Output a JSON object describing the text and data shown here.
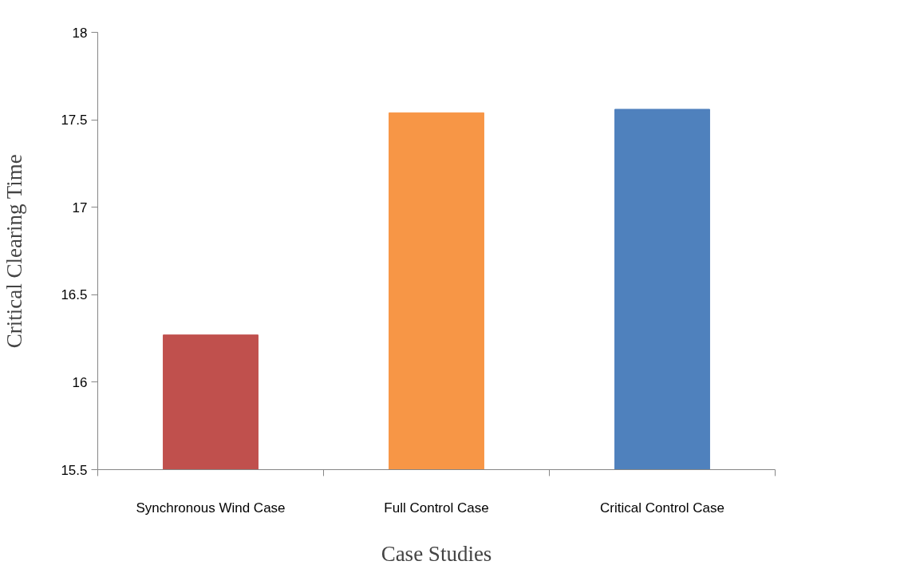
{
  "chart_data": {
    "type": "bar",
    "xlabel": "Case Studies",
    "ylabel": "Critical Clearing Time",
    "categories": [
      "Synchronous Wind Case",
      "Full Control Case",
      "Critical Control Case"
    ],
    "values": [
      16.27,
      17.54,
      17.56
    ],
    "colors": [
      "#c0504d",
      "#f79646",
      "#4f81bd"
    ],
    "ylim": [
      15.5,
      18
    ],
    "yticks": [
      15.5,
      16,
      16.5,
      17,
      17.5,
      18
    ]
  }
}
